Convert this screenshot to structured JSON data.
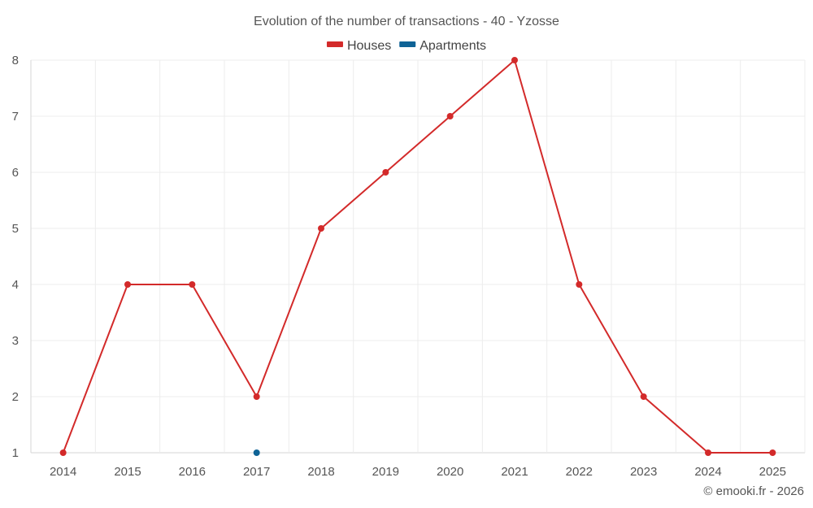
{
  "chart_data": {
    "type": "line",
    "title": "Evolution of the number of transactions - 40 - Yzosse",
    "xlabel": "",
    "ylabel": "",
    "categories": [
      "2014",
      "2015",
      "2016",
      "2017",
      "2018",
      "2019",
      "2020",
      "2021",
      "2022",
      "2023",
      "2024",
      "2025"
    ],
    "ylim": [
      1,
      8
    ],
    "yticks": [
      "1",
      "2",
      "3",
      "4",
      "5",
      "6",
      "7",
      "8"
    ],
    "grid": true,
    "legend_position": "top-center",
    "series": [
      {
        "name": "Houses",
        "color": "#d32a2a",
        "values": [
          1,
          4,
          4,
          2,
          5,
          6,
          7,
          8,
          4,
          2,
          1,
          1
        ]
      },
      {
        "name": "Apartments",
        "color": "#0f6396",
        "values": [
          null,
          null,
          null,
          1,
          null,
          null,
          null,
          null,
          null,
          null,
          null,
          null
        ]
      }
    ]
  },
  "credit": "© emooki.fr - 2026"
}
